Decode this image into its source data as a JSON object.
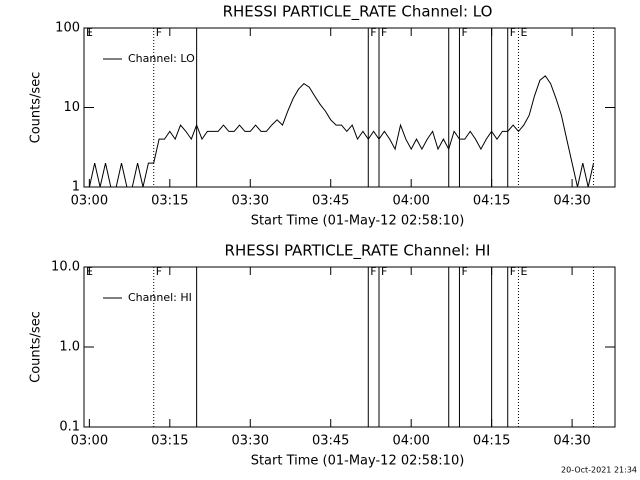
{
  "chart_data": [
    {
      "type": "line",
      "title": "RHESSI PARTICLE_RATE Channel: LO",
      "xlabel": "Start Time (01-May-12 02:58:10)",
      "ylabel": "Counts/sec",
      "log": true,
      "ylim": [
        1,
        100
      ],
      "yticks": [
        1,
        10,
        100
      ],
      "xlim": [
        "02:59",
        "04:38"
      ],
      "xticks": [
        "03:00",
        "03:15",
        "03:30",
        "03:45",
        "04:00",
        "04:15",
        "04:30"
      ],
      "legend": "upper left",
      "x": [
        "03:00",
        "03:01",
        "03:02",
        "03:03",
        "03:04",
        "03:05",
        "03:06",
        "03:07",
        "03:08",
        "03:09",
        "03:10",
        "03:11",
        "03:12",
        "03:13",
        "03:14",
        "03:15",
        "03:16",
        "03:17",
        "03:18",
        "03:19",
        "03:20",
        "03:21",
        "03:22",
        "03:23",
        "03:24",
        "03:25",
        "03:26",
        "03:27",
        "03:28",
        "03:29",
        "03:30",
        "03:31",
        "03:32",
        "03:33",
        "03:34",
        "03:35",
        "03:36",
        "03:37",
        "03:38",
        "03:39",
        "03:40",
        "03:41",
        "03:42",
        "03:43",
        "03:44",
        "03:45",
        "03:46",
        "03:47",
        "03:48",
        "03:49",
        "03:50",
        "03:51",
        "03:52",
        "03:53",
        "03:54",
        "03:55",
        "03:56",
        "03:57",
        "03:58",
        "03:59",
        "04:00",
        "04:01",
        "04:02",
        "04:03",
        "04:04",
        "04:05",
        "04:06",
        "04:07",
        "04:08",
        "04:09",
        "04:10",
        "04:11",
        "04:12",
        "04:13",
        "04:14",
        "04:15",
        "04:16",
        "04:17",
        "04:18",
        "04:19",
        "04:20",
        "04:21",
        "04:22",
        "04:23",
        "04:24",
        "04:25",
        "04:26",
        "04:27",
        "04:28",
        "04:29",
        "04:30",
        "04:31",
        "04:32",
        "04:33",
        "04:34"
      ],
      "series": [
        {
          "name": "Channel: LO",
          "color": "#000000",
          "values": [
            1,
            2,
            1,
            2,
            1,
            1,
            2,
            1,
            1,
            2,
            1,
            2,
            2,
            4,
            4,
            5,
            4,
            6,
            5,
            4,
            6,
            4,
            5,
            5,
            5,
            6,
            5,
            5,
            6,
            5,
            5,
            6,
            5,
            5,
            6,
            7,
            6,
            9,
            13,
            17,
            20,
            18,
            14,
            11,
            9,
            7,
            6,
            6,
            5,
            6,
            4,
            5,
            4,
            5,
            4,
            5,
            4,
            3,
            6,
            4,
            3,
            4,
            3,
            4,
            5,
            3,
            4,
            3,
            5,
            4,
            4,
            5,
            4,
            3,
            4,
            5,
            4,
            5,
            5,
            6,
            5,
            6,
            8,
            14,
            22,
            25,
            20,
            13,
            8,
            4,
            2,
            1,
            2,
            1,
            2
          ]
        }
      ],
      "flags": [
        {
          "time": "02:59",
          "label": "E",
          "style": "solid"
        },
        {
          "time": "03:12",
          "label": "F",
          "style": "dotted"
        },
        {
          "time": "03:20",
          "style": "solid"
        },
        {
          "time": "03:52",
          "label": "F",
          "style": "solid"
        },
        {
          "time": "03:54",
          "label": "F",
          "style": "solid"
        },
        {
          "time": "04:07",
          "style": "solid"
        },
        {
          "time": "04:09",
          "label": "F",
          "style": "solid"
        },
        {
          "time": "04:15",
          "style": "solid"
        },
        {
          "time": "04:18",
          "label": "F",
          "style": "solid"
        },
        {
          "time": "04:20",
          "label": "E",
          "style": "dotted"
        },
        {
          "time": "04:34",
          "style": "dotted"
        }
      ]
    },
    {
      "type": "line",
      "title": "RHESSI PARTICLE_RATE Channel: HI",
      "xlabel": "Start Time (01-May-12 02:58:10)",
      "ylabel": "Counts/sec",
      "log": true,
      "ylim": [
        0.1,
        10
      ],
      "yticks": [
        0.1,
        {
          "value": 1,
          "label": "1.0"
        },
        {
          "value": 10,
          "label": "10.0"
        }
      ],
      "xlim": [
        "02:59",
        "04:38"
      ],
      "xticks": [
        "03:00",
        "03:15",
        "03:30",
        "03:45",
        "04:00",
        "04:15",
        "04:30"
      ],
      "legend": "upper left",
      "x": [],
      "series": [
        {
          "name": "Channel: HI",
          "color": "#000000",
          "values": []
        }
      ],
      "flags": [
        {
          "time": "02:59",
          "label": "E",
          "style": "solid"
        },
        {
          "time": "03:12",
          "label": "F",
          "style": "dotted"
        },
        {
          "time": "03:20",
          "style": "solid"
        },
        {
          "time": "03:52",
          "label": "F",
          "style": "solid"
        },
        {
          "time": "03:54",
          "label": "F",
          "style": "solid"
        },
        {
          "time": "04:07",
          "style": "solid"
        },
        {
          "time": "04:09",
          "label": "F",
          "style": "solid"
        },
        {
          "time": "04:15",
          "style": "solid"
        },
        {
          "time": "04:18",
          "label": "F",
          "style": "solid"
        },
        {
          "time": "04:20",
          "label": "E",
          "style": "dotted"
        },
        {
          "time": "04:34",
          "style": "dotted"
        }
      ]
    }
  ],
  "footer": "20-Oct-2021 21:34"
}
